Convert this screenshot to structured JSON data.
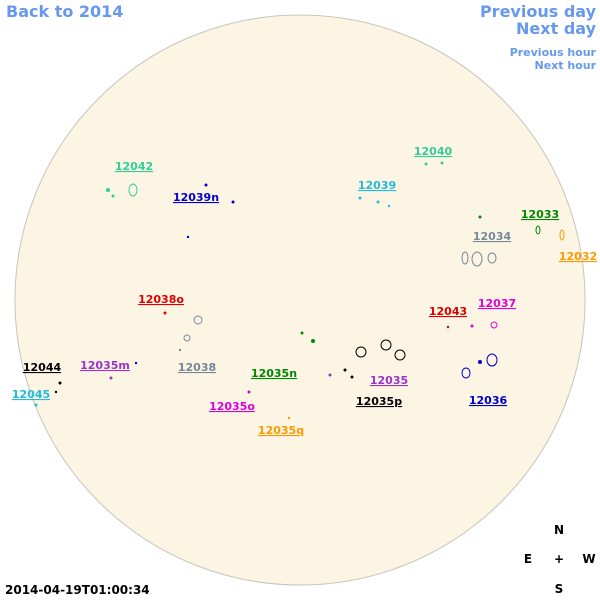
{
  "nav": {
    "back": "Back to 2014",
    "previous_day": "Previous day",
    "next_day": "Next day",
    "previous_hour": "Previous hour",
    "next_hour": "Next hour"
  },
  "timestamp": "2014-04-19T01:00:34",
  "compass": {
    "north": "N",
    "east": "E",
    "center": "+",
    "west": "W",
    "south": "S"
  },
  "regions": [
    {
      "label": "12042",
      "color": "#33cc99"
    },
    {
      "label": "12040",
      "color": "#33cc99"
    },
    {
      "label": "12039n",
      "color": "#0000cc"
    },
    {
      "label": "12039",
      "color": "#22bbdd"
    },
    {
      "label": "12033",
      "color": "#008800"
    },
    {
      "label": "12034",
      "color": "#778899"
    },
    {
      "label": "12032",
      "color": "#ff9900"
    },
    {
      "label": "12038o",
      "color": "#dd0000"
    },
    {
      "label": "12043",
      "color": "#dd0000"
    },
    {
      "label": "12037",
      "color": "#dd00dd"
    },
    {
      "label": "12044",
      "color": "#000000"
    },
    {
      "label": "12035m",
      "color": "#9933cc"
    },
    {
      "label": "12038",
      "color": "#778899"
    },
    {
      "label": "12035n",
      "color": "#008800"
    },
    {
      "label": "12035",
      "color": "#9933cc"
    },
    {
      "label": "12045",
      "color": "#22bbdd"
    },
    {
      "label": "12035o",
      "color": "#dd00dd"
    },
    {
      "label": "12035p",
      "color": "#000000"
    },
    {
      "label": "12036",
      "color": "#0000cc"
    },
    {
      "label": "12035q",
      "color": "#ff9900"
    }
  ]
}
